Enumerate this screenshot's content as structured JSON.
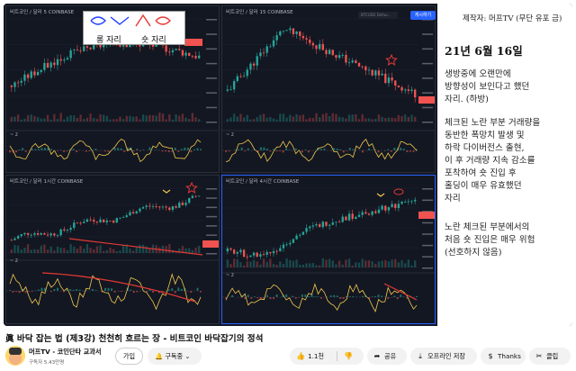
{
  "video": {
    "charts": {
      "top_left": {
        "title": "비트코인 / 달러  5  COINBASE",
        "indicator": "~ 2"
      },
      "top_right": {
        "title": "비트코인 / 달러  15  COINBASE",
        "indicator": "~ 2"
      },
      "bottom_left": {
        "title": "비트코인 / 달러  1시간  COINBASE",
        "indicator": "~ 2"
      },
      "bottom_right": {
        "title": "비트코인 / 달러  4시간  COINBASE",
        "indicator": "~ 2"
      }
    },
    "legend": {
      "long_label": "롱 자리",
      "short_label": "숏 자리"
    },
    "search_label": "BTCUSD Defau...",
    "publish_button": "게시하기",
    "notes": {
      "header": "제작자: 머프TV (무단 유포 금)",
      "date": "21년 6월 16일",
      "para1": "생방중에 오랜만에\n방향성이 보인다고 했던\n자리. (하방)",
      "para2": "체크된 노란 부분 거래량을\n동반한 폭망치 발생 및\n하락 다이버전스 출현,\n이 후 거래량 지속 감소를\n포착하여 숏 진입 후\n홀딩이 매우 유효했던\n자리",
      "para3": "노란 체크된 부분에서의\n처음 숏 진입은 매우 위험\n(선호하지 않음)"
    }
  },
  "info": {
    "title": "眞 바닥 잡는 법 (제3강) 천천히 흐르는 장 - 비트코인 바닥잡기의 정석",
    "channel_name": "머프TV - 코인단타 교과서",
    "subscribers": "구독자 5.43만명",
    "join_label": "가입",
    "subscribe_label": "구독중 ⌄",
    "like_count": "1.1천",
    "share_label": "공유",
    "offline_label": "오프라인 저장",
    "thanks_label": "Thanks",
    "clip_label": "클립"
  },
  "colors": {
    "up": "#26a69a",
    "down": "#ef5350",
    "chart_bg": "#131722",
    "accent": "#2962ff",
    "annotation": "#e53935",
    "highlight": "#f2c94c"
  },
  "icons": [
    "thumb-up-icon",
    "thumb-down-icon",
    "share-icon",
    "download-icon",
    "thanks-icon",
    "clip-icon",
    "star-icon"
  ]
}
